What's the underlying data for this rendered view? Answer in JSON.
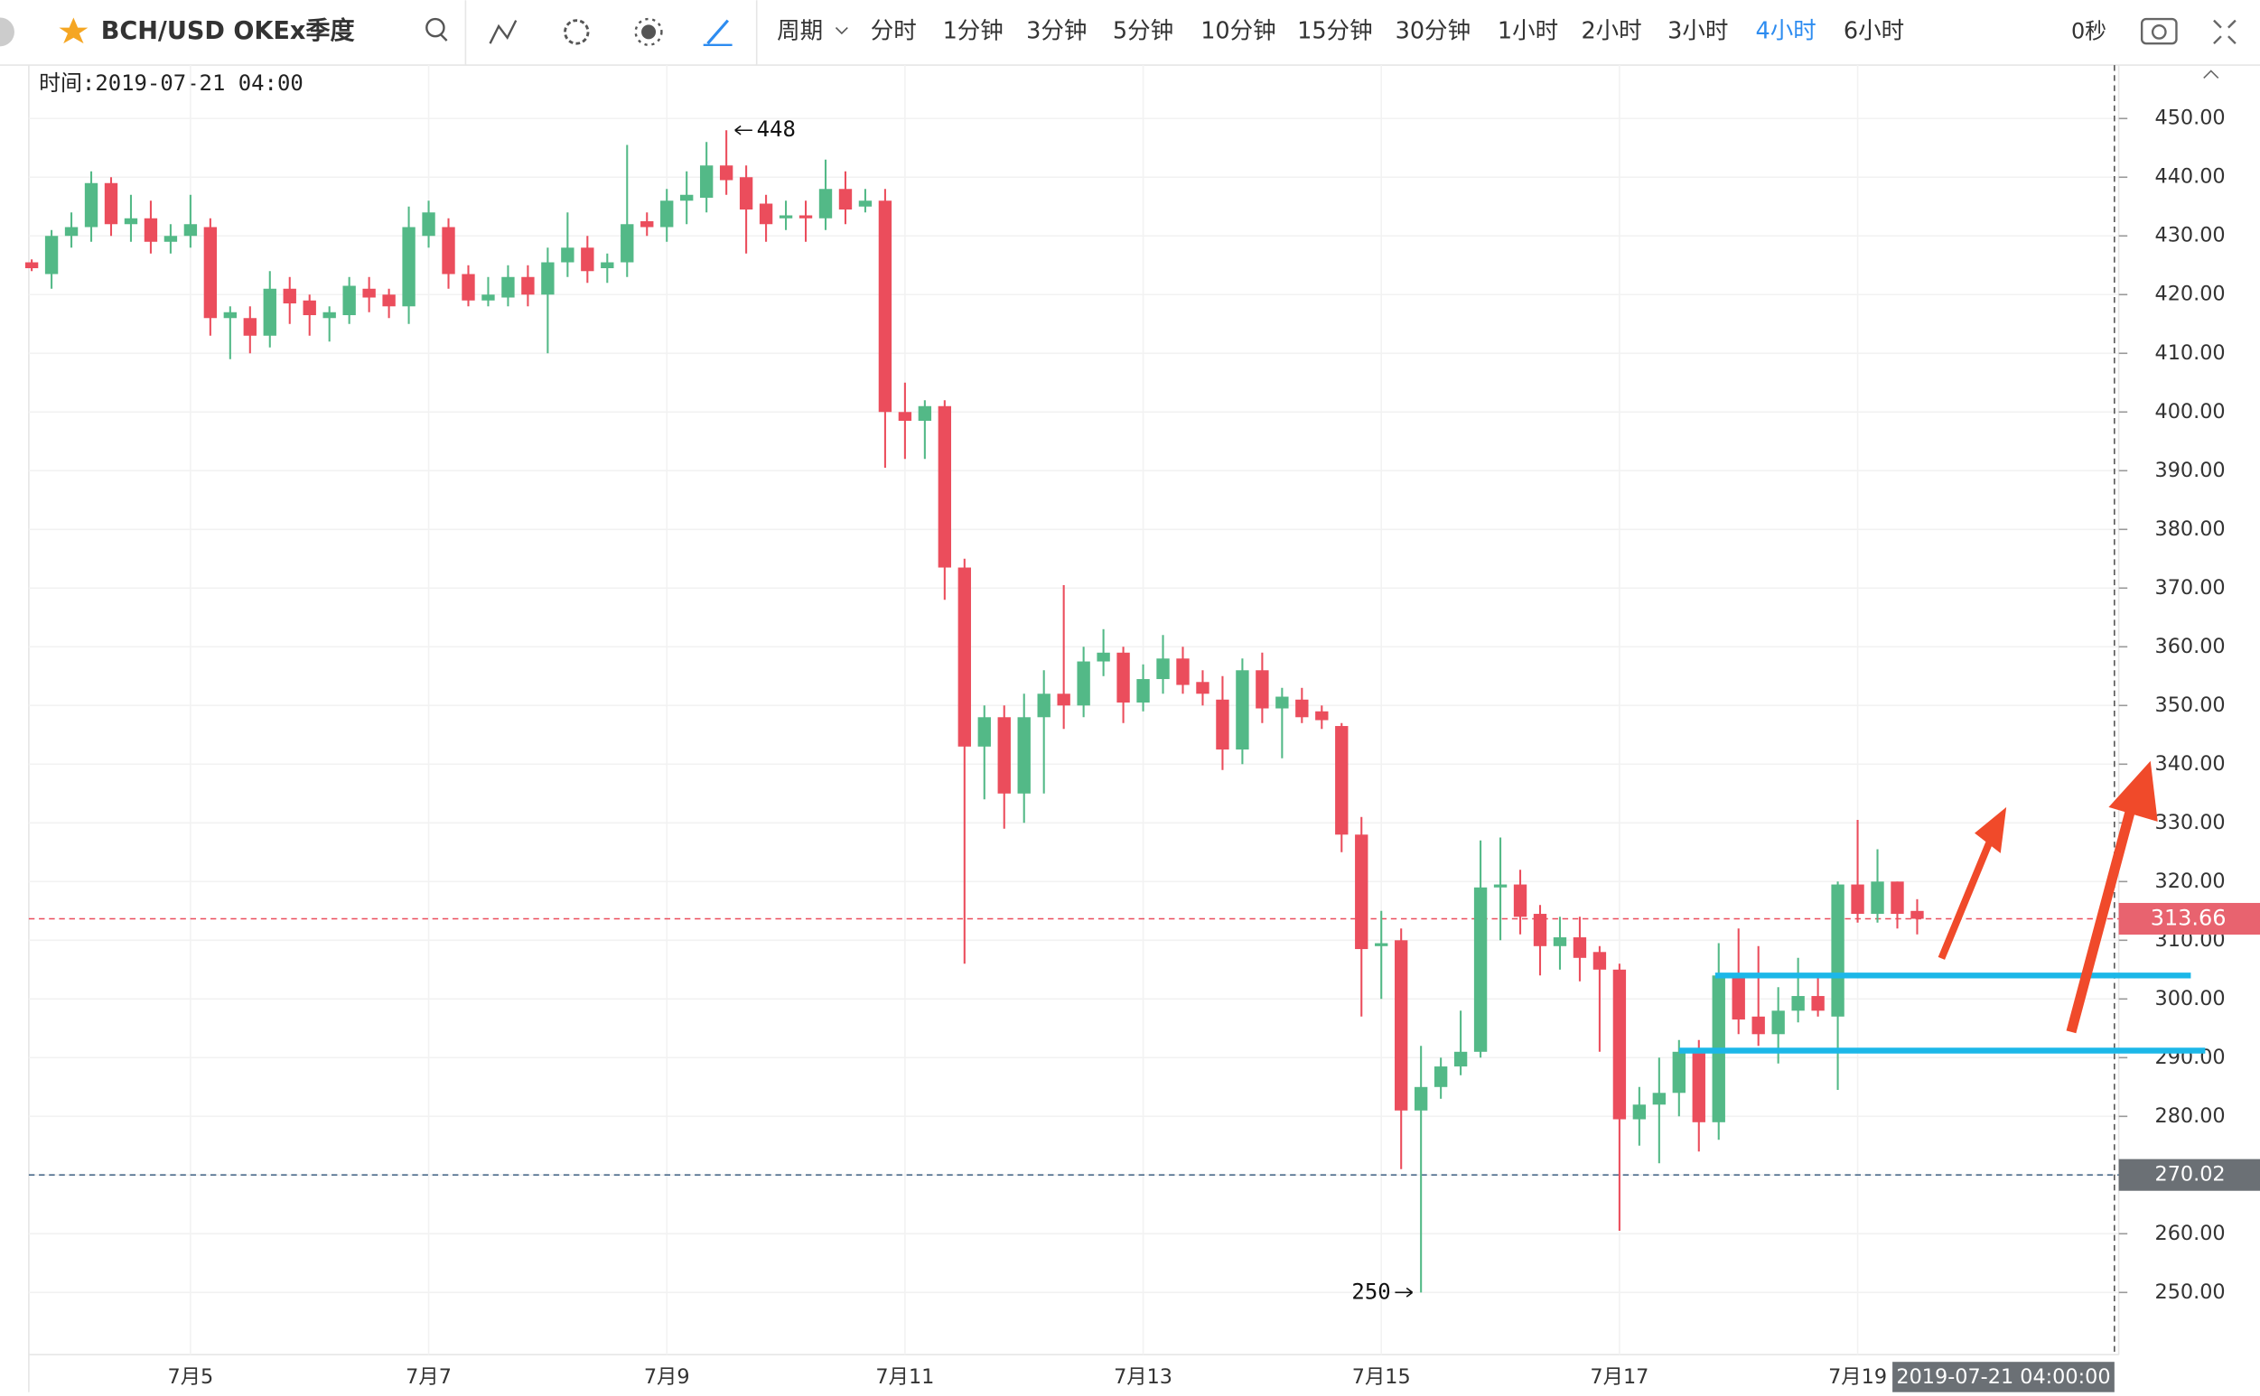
{
  "toolbar": {
    "symbol": "BCH/USD OKEx季度",
    "period": "周期",
    "intervals": [
      "分时",
      "1分钟",
      "3分钟",
      "5分钟",
      "10分钟",
      "15分钟",
      "30分钟",
      "1小时",
      "2小时",
      "3小时",
      "4小时",
      "6小时"
    ],
    "active_interval": 10,
    "countdown": "0秒"
  },
  "chart_data": {
    "type": "candlestick",
    "time_label": "时间:2019-07-21 04:00",
    "categories": [
      null,
      null,
      null,
      null,
      null,
      null,
      null,
      null,
      "7月5",
      null,
      null,
      null,
      null,
      null,
      null,
      null,
      null,
      null,
      null,
      null,
      "7月7",
      null,
      null,
      null,
      null,
      null,
      null,
      null,
      null,
      null,
      null,
      null,
      "7月9",
      null,
      null,
      null,
      null,
      null,
      null,
      null,
      null,
      null,
      null,
      null,
      "7月11",
      null,
      null,
      null,
      null,
      null,
      null,
      null,
      null,
      null,
      null,
      null,
      "7月13",
      null,
      null,
      null,
      null,
      null,
      null,
      null,
      null,
      null,
      null,
      null,
      "7月15",
      null,
      null,
      null,
      null,
      null,
      null,
      null,
      null,
      null,
      null,
      null,
      "7月17",
      null,
      null,
      null,
      null,
      null,
      null,
      null,
      null,
      null,
      null,
      null,
      "7月19",
      null,
      null,
      null
    ],
    "open": [
      425.5,
      423.5,
      430,
      431.5,
      439,
      432,
      433,
      429,
      430,
      431.5,
      416,
      416,
      413,
      421,
      419,
      416,
      416.5,
      421,
      420,
      418,
      430,
      431.5,
      423.5,
      419,
      419.5,
      423,
      420,
      425.5,
      428,
      424.5,
      425.5,
      432.5,
      431.5,
      436,
      436.5,
      442,
      440,
      435.5,
      433,
      433.5,
      433,
      438,
      435,
      436,
      400,
      398.5,
      401,
      373.5,
      343,
      348,
      335,
      348,
      352,
      350,
      357.5,
      359,
      350.5,
      354.5,
      358,
      354,
      351,
      342.5,
      356,
      349.5,
      351,
      349,
      346.5,
      328,
      309,
      310,
      281,
      285,
      288.5,
      291,
      319,
      319.5,
      314.5,
      309,
      310.5,
      308,
      305,
      279.5,
      282,
      284,
      291,
      279,
      304,
      297,
      294,
      298,
      300.5,
      297,
      319.5,
      314.5,
      320,
      315
    ],
    "high": [
      426,
      431,
      434,
      441,
      440,
      437,
      436,
      432,
      437,
      433,
      418,
      418,
      424,
      423,
      420,
      418,
      423,
      423,
      421,
      435,
      436,
      433,
      425,
      423,
      425,
      425,
      428,
      434,
      430,
      427,
      445.5,
      434,
      438,
      441,
      446,
      448,
      442,
      437,
      436,
      436,
      443,
      441,
      438,
      438,
      405,
      402,
      402,
      375,
      350,
      350,
      352,
      356,
      370.5,
      360,
      363,
      360,
      357,
      362,
      360,
      356,
      355,
      358,
      359,
      353,
      353,
      350,
      347,
      331,
      315,
      312,
      292,
      290,
      298,
      327,
      327.5,
      322,
      316,
      314,
      314,
      309,
      306,
      285,
      290,
      293,
      293,
      309.5,
      312,
      309,
      302,
      307,
      304,
      320,
      330.5,
      325.5,
      320,
      317
    ],
    "low": [
      424,
      421,
      428,
      429,
      430,
      429,
      427,
      427,
      428,
      413,
      409,
      410,
      411,
      415,
      413,
      412,
      415,
      417,
      416,
      415,
      428,
      421,
      418,
      418,
      418,
      418,
      410,
      423,
      422,
      422,
      423,
      430,
      429,
      432,
      434,
      437,
      427,
      429,
      431,
      429,
      431,
      432,
      434,
      390.5,
      392,
      392,
      368,
      306,
      334,
      329,
      330,
      335,
      346,
      348,
      355,
      347,
      349,
      352,
      352,
      350,
      339,
      340,
      347,
      341,
      347,
      346,
      325,
      297,
      300,
      271,
      250,
      283,
      287,
      290,
      310,
      311,
      304,
      305,
      303,
      291,
      260.5,
      275,
      272,
      280,
      274,
      276,
      294,
      292,
      289,
      296,
      297,
      284.5,
      313,
      313,
      312,
      311
    ],
    "close": [
      424.5,
      430,
      431.5,
      439,
      432,
      433,
      429,
      430,
      432,
      416,
      417,
      413,
      421,
      418.5,
      416.5,
      417,
      421.5,
      419.5,
      418,
      431.5,
      434,
      423.5,
      419,
      420,
      423,
      420,
      425.5,
      428,
      424,
      425.5,
      432,
      431.5,
      436,
      437,
      442,
      439.5,
      434.5,
      432,
      433.5,
      433,
      438,
      434.5,
      436,
      400,
      398.5,
      401,
      373.5,
      343,
      348,
      335,
      348,
      352,
      350,
      357.5,
      359,
      350.5,
      354.5,
      358,
      353.5,
      352,
      342.5,
      356,
      349.5,
      351.5,
      348,
      347.5,
      328,
      308.5,
      309.5,
      281,
      285,
      288.5,
      291,
      319,
      319.5,
      314,
      309,
      310.5,
      307,
      305,
      279.5,
      282,
      284,
      291,
      279,
      304,
      296.5,
      294,
      298,
      300.5,
      298,
      319.5,
      314.5,
      320,
      314.5,
      313.66
    ],
    "up_color": "#53b987",
    "down_color": "#eb4d5c",
    "ylim": [
      239.4,
      459.1
    ],
    "yticks": [
      {
        "value": 250,
        "label": "250.00"
      },
      {
        "value": 260,
        "label": "260.00"
      },
      {
        "value": 270,
        "label": "270.00"
      },
      {
        "value": 280,
        "label": "280.00"
      },
      {
        "value": 290,
        "label": "290.00"
      },
      {
        "value": 300,
        "label": "300.00"
      },
      {
        "value": 310,
        "label": "310.00"
      },
      {
        "value": 320,
        "label": "320.00"
      },
      {
        "value": 330,
        "label": "330.00"
      },
      {
        "value": 340,
        "label": "340.00"
      },
      {
        "value": 350,
        "label": "350.00"
      },
      {
        "value": 360,
        "label": "360.00"
      },
      {
        "value": 370,
        "label": "370.00"
      },
      {
        "value": 380,
        "label": "380.00"
      },
      {
        "value": 390,
        "label": "390.00"
      },
      {
        "value": 400,
        "label": "400.00"
      },
      {
        "value": 410,
        "label": "410.00"
      },
      {
        "value": 420,
        "label": "420.00"
      },
      {
        "value": 430,
        "label": "430.00"
      },
      {
        "value": 440,
        "label": "440.00"
      },
      {
        "value": 450,
        "label": "450.00"
      }
    ],
    "grid": true,
    "high_label": 448,
    "low_label": 250,
    "last_price": 313.66,
    "crosshair_price": 270.02,
    "crosshair_time": "2019-07-21 04:00:00",
    "levels": [
      304,
      291.2
    ],
    "level_color": "#1cb7e8"
  }
}
